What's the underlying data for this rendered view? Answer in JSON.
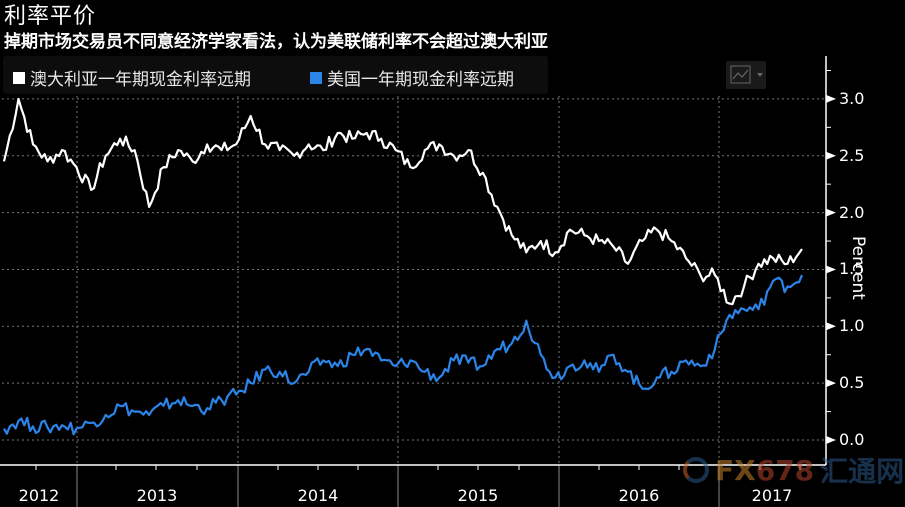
{
  "header": {
    "title": "利率平价",
    "subtitle": "掉期市场交易员不同意经济学家看法，认为美联储利率不会超过澳大利亚"
  },
  "legend": {
    "items": [
      {
        "label": "澳大利亚一年期现金利率远期",
        "color": "#ffffff"
      },
      {
        "label": "美国一年期现金利率远期",
        "color": "#2b84e8"
      }
    ]
  },
  "toolbar": {
    "chart_type_icon": "line-chart-icon",
    "dropdown_icon": "caret-down-icon"
  },
  "axis": {
    "y_ticks": [
      "3.0",
      "2.5",
      "2.0",
      "1.5",
      "1.0",
      "0.5",
      "0.0"
    ],
    "y_label": "Percent",
    "years": [
      "2012",
      "2013",
      "2014",
      "2015",
      "2016",
      "2017"
    ]
  },
  "watermark": {
    "fx": "FX",
    "num": "678",
    "cn": "汇通网"
  },
  "colors": {
    "background": "#000000",
    "aus_series": "#ffffff",
    "us_series": "#2b84e8",
    "grid": "#777777"
  },
  "chart_data": {
    "type": "line",
    "title": "利率平价",
    "subtitle": "掉期市场交易员不同意经济学家看法，认为美联储利率不会超过澳大利亚",
    "xlabel": "",
    "ylabel": "Percent",
    "ylim": [
      -0.2,
      3.3
    ],
    "y_ticks": [
      0.0,
      0.5,
      1.0,
      1.5,
      2.0,
      2.5,
      3.0
    ],
    "x_tick_labels": [
      "2012",
      "2013",
      "2014",
      "2015",
      "2016",
      "2017"
    ],
    "grid": true,
    "legend_position": "top-left",
    "x": [
      "2012-09",
      "2012-10",
      "2012-11",
      "2012-12",
      "2013-01",
      "2013-02",
      "2013-03",
      "2013-04",
      "2013-05",
      "2013-06",
      "2013-07",
      "2013-08",
      "2013-09",
      "2013-10",
      "2013-11",
      "2013-12",
      "2014-01",
      "2014-02",
      "2014-03",
      "2014-04",
      "2014-05",
      "2014-06",
      "2014-07",
      "2014-08",
      "2014-09",
      "2014-10",
      "2014-11",
      "2014-12",
      "2015-01",
      "2015-02",
      "2015-03",
      "2015-04",
      "2015-05",
      "2015-06",
      "2015-07",
      "2015-08",
      "2015-09",
      "2015-10",
      "2015-11",
      "2015-12",
      "2016-01",
      "2016-02",
      "2016-03",
      "2016-04",
      "2016-05",
      "2016-06",
      "2016-07",
      "2016-08",
      "2016-09",
      "2016-10",
      "2016-11",
      "2016-12",
      "2017-01",
      "2017-02",
      "2017-03",
      "2017-04"
    ],
    "series": [
      {
        "name": "澳大利亚一年期现金利率远期",
        "color": "#ffffff",
        "values": [
          2.45,
          3.0,
          2.6,
          2.45,
          2.55,
          2.4,
          2.2,
          2.5,
          2.65,
          2.55,
          2.05,
          2.4,
          2.55,
          2.45,
          2.6,
          2.55,
          2.6,
          2.85,
          2.6,
          2.55,
          2.5,
          2.6,
          2.55,
          2.7,
          2.65,
          2.7,
          2.65,
          2.55,
          2.4,
          2.55,
          2.6,
          2.5,
          2.55,
          2.35,
          2.05,
          1.8,
          1.65,
          1.75,
          1.65,
          1.85,
          1.8,
          1.75,
          1.7,
          1.55,
          1.75,
          1.85,
          1.75,
          1.6,
          1.45,
          1.45,
          1.2,
          1.35,
          1.55,
          1.6,
          1.55,
          1.68
        ]
      },
      {
        "name": "美国一年期现金利率远期",
        "color": "#2b84e8",
        "values": [
          0.1,
          0.17,
          0.12,
          0.11,
          0.13,
          0.1,
          0.15,
          0.22,
          0.3,
          0.25,
          0.22,
          0.3,
          0.35,
          0.3,
          0.28,
          0.35,
          0.4,
          0.5,
          0.62,
          0.6,
          0.5,
          0.6,
          0.7,
          0.65,
          0.75,
          0.8,
          0.7,
          0.65,
          0.7,
          0.6,
          0.55,
          0.7,
          0.68,
          0.65,
          0.8,
          0.85,
          1.05,
          0.75,
          0.55,
          0.65,
          0.7,
          0.6,
          0.75,
          0.6,
          0.45,
          0.55,
          0.6,
          0.7,
          0.65,
          0.8,
          1.1,
          1.15,
          1.15,
          1.4,
          1.35,
          1.45
        ]
      }
    ]
  }
}
